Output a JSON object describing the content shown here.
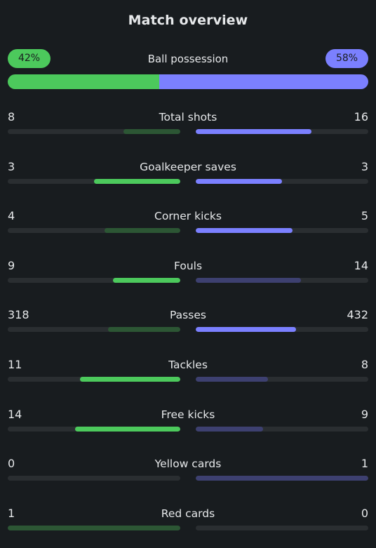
{
  "title": "Match overview",
  "colors": {
    "home_strong": "#4cc95c",
    "home_weak": "#2c5634",
    "away_strong": "#7b80ff",
    "away_weak": "#3d4070",
    "track": "#2a2e31",
    "background": "#181c1f"
  },
  "possession": {
    "label": "Ball possession",
    "home_text": "42%",
    "away_text": "58%",
    "home_value": 42,
    "away_value": 58
  },
  "stats": [
    {
      "label": "Total shots",
      "home": "8",
      "away": "16",
      "home_fill": 0.33,
      "away_fill": 0.67
    },
    {
      "label": "Goalkeeper saves",
      "home": "3",
      "away": "3",
      "home_fill": 0.5,
      "away_fill": 0.5
    },
    {
      "label": "Corner kicks",
      "home": "4",
      "away": "5",
      "home_fill": 0.44,
      "away_fill": 0.56
    },
    {
      "label": "Fouls",
      "home": "9",
      "away": "14",
      "home_fill": 0.39,
      "away_fill": 0.61
    },
    {
      "label": "Passes",
      "home": "318",
      "away": "432",
      "home_fill": 0.42,
      "away_fill": 0.58
    },
    {
      "label": "Tackles",
      "home": "11",
      "away": "8",
      "home_fill": 0.58,
      "away_fill": 0.42
    },
    {
      "label": "Free kicks",
      "home": "14",
      "away": "9",
      "home_fill": 0.61,
      "away_fill": 0.39
    },
    {
      "label": "Yellow cards",
      "home": "0",
      "away": "1",
      "home_fill": 0,
      "away_fill": 1
    },
    {
      "label": "Red cards",
      "home": "1",
      "away": "0",
      "home_fill": 1,
      "away_fill": 0
    }
  ]
}
